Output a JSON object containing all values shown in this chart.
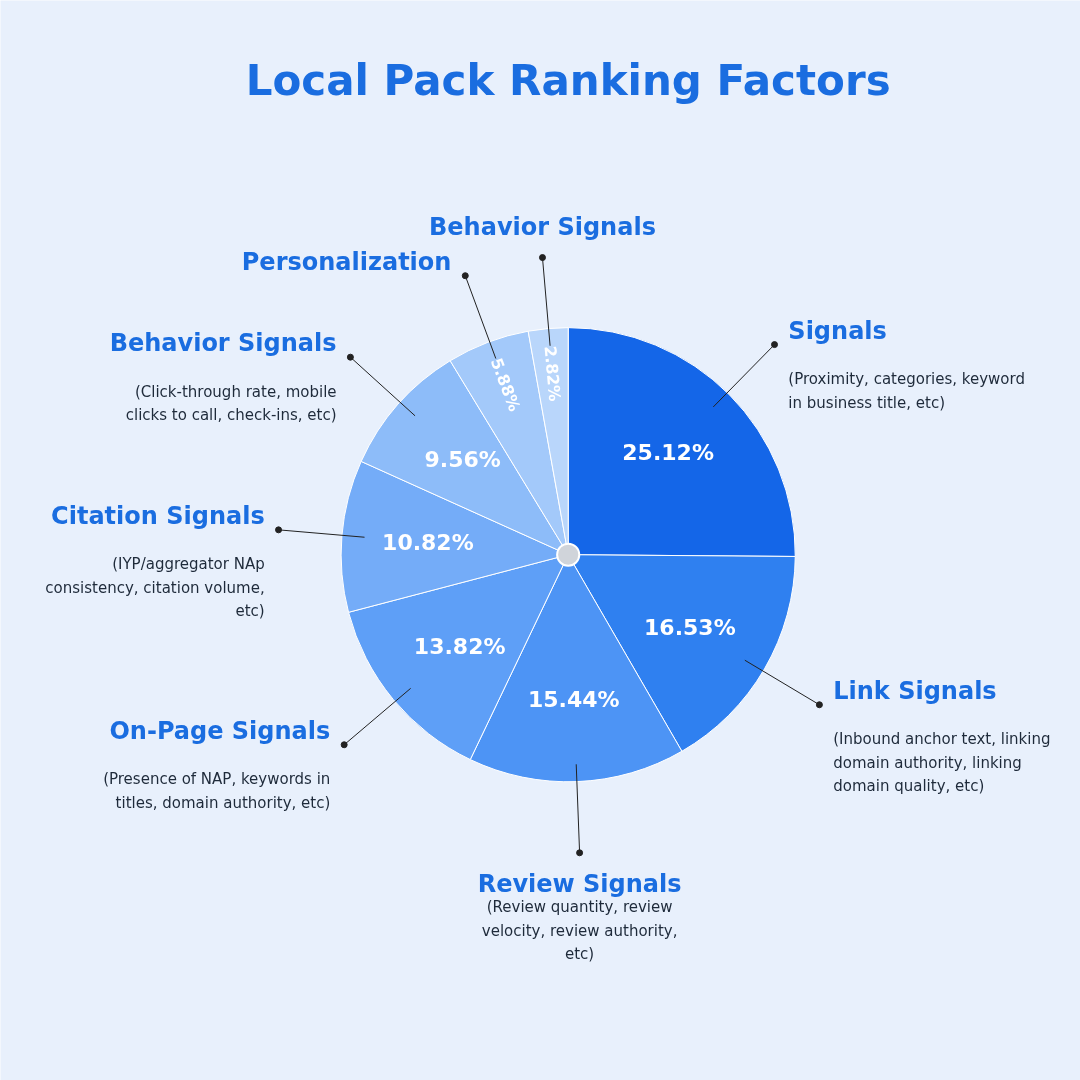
{
  "chart_data": {
    "type": "pie",
    "title": "Local Pack Ranking Factors",
    "categories": [
      "Signals",
      "Link Signals",
      "Review Signals",
      "On-Page Signals",
      "Citation Signals",
      "Behavior Signals",
      "Personalization",
      "Behavior Signals"
    ],
    "values": [
      25.12,
      16.53,
      15.44,
      13.82,
      10.82,
      9.56,
      5.88,
      2.82
    ],
    "value_labels": [
      "25.12%",
      "16.53%",
      "15.44%",
      "13.82%",
      "10.82%",
      "9.56%",
      "5.88%",
      "2.82%"
    ],
    "colors": [
      "#1466e8",
      "#2f80f0",
      "#4d94f5",
      "#5e9ff7",
      "#74acf8",
      "#8dbcf9",
      "#a3c9fa",
      "#b9d6fb"
    ],
    "annotations": [
      {
        "text": "(Proximity, categories, keyword in business title, etc)",
        "x": "Signals"
      },
      {
        "text": "(Inbound anchor text, linking domain authority, linking domain quality, etc)",
        "x": "Link Signals"
      },
      {
        "text": "(Review quantity, review velocity, review authority, etc)",
        "x": "Review Signals"
      },
      {
        "text": "(Presence of NAP, keywords in titles, domain authority, etc)",
        "x": "On-Page Signals"
      },
      {
        "text": "(IYP/aggregator NAp consistency, citation volume, etc)",
        "x": "Citation Signals"
      },
      {
        "text": "(Click-through rate, mobile clicks to call, check-ins, etc)",
        "x": "Behavior Signals"
      }
    ]
  }
}
